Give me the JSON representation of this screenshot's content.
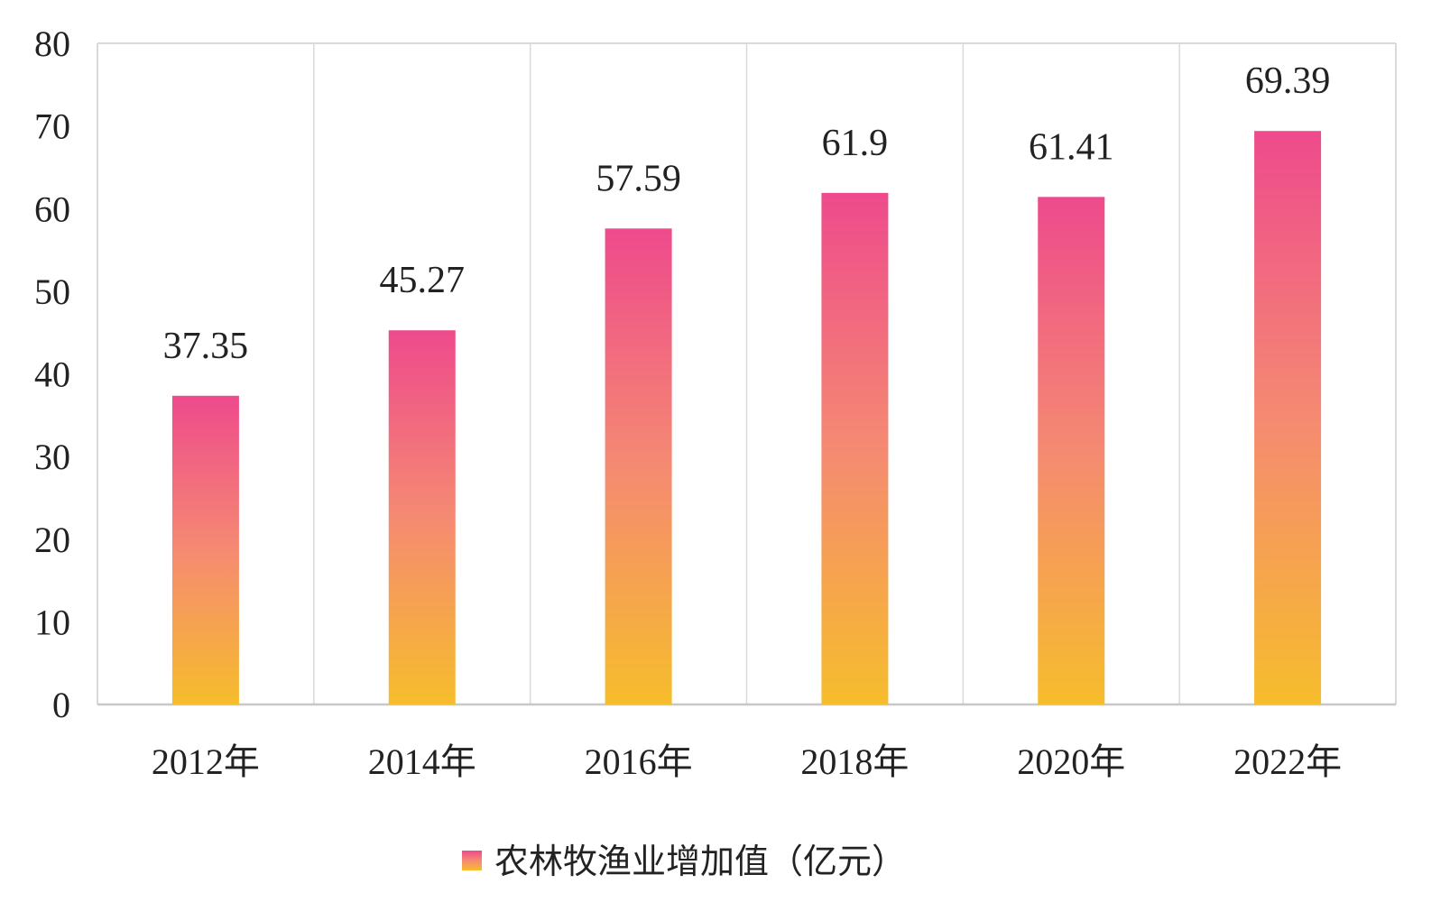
{
  "chart_data": {
    "type": "bar",
    "categories": [
      "2012年",
      "2014年",
      "2016年",
      "2018年",
      "2020年",
      "2022年"
    ],
    "series": [
      {
        "name": "农林牧渔业增加值（亿元）",
        "values": [
          37.35,
          45.27,
          57.59,
          61.9,
          61.41,
          69.39
        ],
        "data_labels": [
          "37.35",
          "45.27",
          "57.59",
          "61.9",
          "61.41",
          "69.39"
        ]
      }
    ],
    "title": "",
    "xlabel": "",
    "ylabel": "",
    "ylim": [
      0,
      80
    ],
    "yticks": [
      0,
      10,
      20,
      30,
      40,
      50,
      60,
      70,
      80
    ],
    "grid": "vertical",
    "legend": "bottom-center",
    "colors": {
      "bar_top": "#ee4a8c",
      "bar_mid": "#f58a72",
      "bar_bottom": "#f6bd2c",
      "grid": "#d9d9d9",
      "axis": "#c8c8c8"
    }
  }
}
